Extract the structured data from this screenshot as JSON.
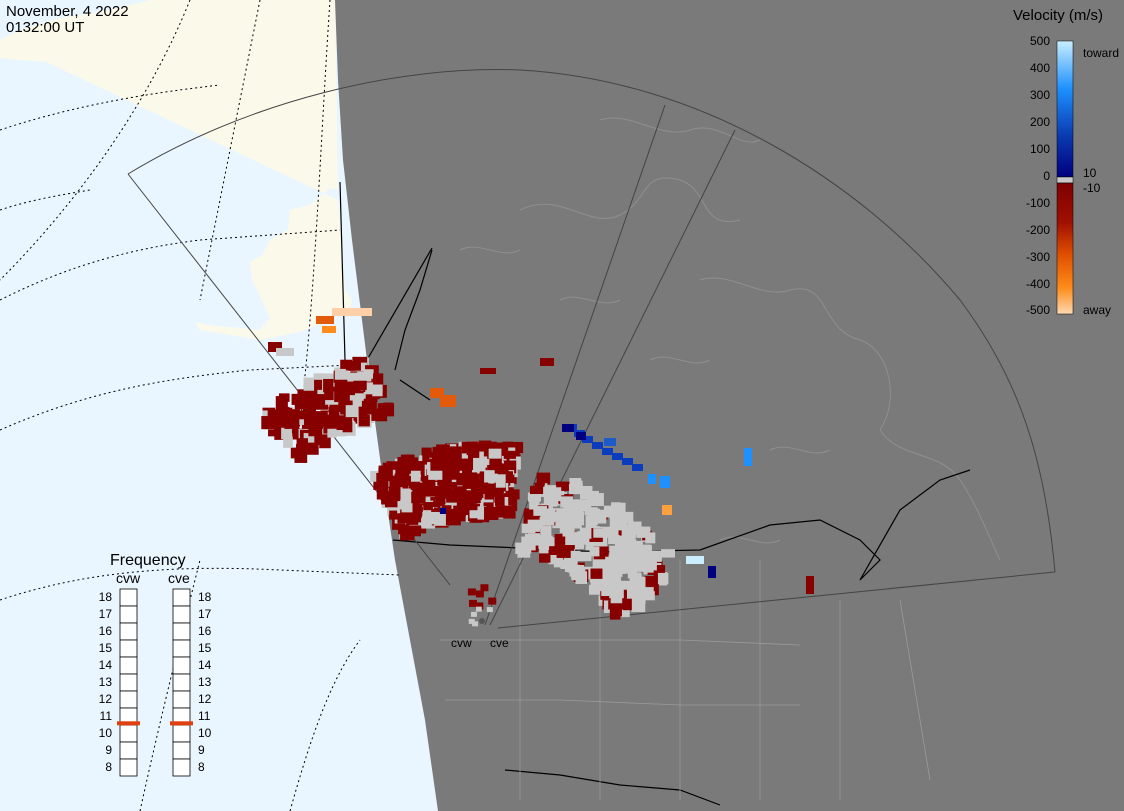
{
  "header": {
    "date": "November, 4 2022",
    "time": "0132:00 UT"
  },
  "radars": [
    {
      "code": "cvw"
    },
    {
      "code": "cve"
    }
  ],
  "velocity_scale": {
    "title": "Velocity (m/s)",
    "ticks_left": [
      "500",
      "400",
      "300",
      "200",
      "100",
      "0",
      "-100",
      "-200",
      "-300",
      "-400",
      "-500"
    ],
    "ticks_right": [
      "toward",
      "10",
      "-10",
      "away"
    ],
    "colors": {
      "toward_light": "#c8eeff",
      "toward_mid": "#1e90ff",
      "toward_dark": "#00007f",
      "zero_band": "#c8c8c8",
      "away_dark": "#7f0000",
      "away_mid": "#ff6a00",
      "away_light": "#ffd8b0"
    }
  },
  "frequency_panel": {
    "title": "Frequency",
    "column_labels": [
      "cvw",
      "cve"
    ],
    "ticks": [
      "18",
      "17",
      "16",
      "15",
      "14",
      "13",
      "12",
      "11",
      "10",
      "9",
      "8"
    ],
    "selected": [
      {
        "radar": "cvw",
        "mhz": 10.6
      },
      {
        "radar": "cve",
        "mhz": 10.6
      }
    ],
    "marker_color": "#e04010"
  },
  "map_colors": {
    "ocean": "#eaf6ff",
    "land_daylight": "#fbf9ea",
    "night": "#7a7a7a",
    "borders": "#000000",
    "fov_outline": "#444444",
    "ground_scatter": "#c8c8c8",
    "away": "#870000",
    "toward": "#0c3cbe"
  }
}
